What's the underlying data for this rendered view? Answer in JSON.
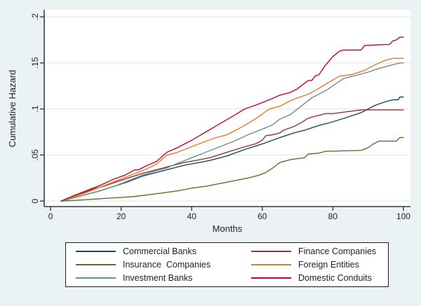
{
  "figure": {
    "background": "#eaf2f3",
    "plot_background": "#ffffff",
    "grid_color": "#ddecef",
    "axis_color": "#3a3a3a",
    "text_color": "#1f1f2a"
  },
  "chart_data": {
    "type": "line",
    "title": "",
    "xlabel": "Months",
    "ylabel": "Cumulative Hazard",
    "xlim": [
      -1.8,
      102
    ],
    "ylim": [
      -0.006,
      0.2077
    ],
    "xticks": [
      0,
      20,
      40,
      60,
      80,
      100
    ],
    "xtick_labels": [
      "0",
      "20",
      "40",
      "60",
      "80",
      "100"
    ],
    "yticks": [
      0,
      0.05,
      0.1,
      0.15,
      0.2
    ],
    "ytick_labels": [
      "0",
      ".05",
      ".1",
      ".15",
      ".2"
    ],
    "grid": true,
    "legend_position": "bottom",
    "series": [
      {
        "name": "Commercial Banks",
        "color": "#1a476f",
        "points": [
          [
            3,
            0
          ],
          [
            6,
            0.003
          ],
          [
            10,
            0.007
          ],
          [
            14,
            0.011
          ],
          [
            18,
            0.016
          ],
          [
            22,
            0.021
          ],
          [
            26,
            0.027
          ],
          [
            30,
            0.031
          ],
          [
            34,
            0.035
          ],
          [
            38,
            0.039
          ],
          [
            41,
            0.041
          ],
          [
            45,
            0.044
          ],
          [
            50,
            0.049
          ],
          [
            55,
            0.056
          ],
          [
            60,
            0.062
          ],
          [
            65,
            0.069
          ],
          [
            69,
            0.074
          ],
          [
            72,
            0.077
          ],
          [
            76,
            0.082
          ],
          [
            80,
            0.086
          ],
          [
            84,
            0.091
          ],
          [
            88,
            0.096
          ],
          [
            90,
            0.1
          ],
          [
            92,
            0.104
          ],
          [
            95,
            0.108
          ],
          [
            97,
            0.11
          ],
          [
            98.5,
            0.11
          ],
          [
            99,
            0.113
          ],
          [
            100,
            0.113
          ]
        ]
      },
      {
        "name": "Finance Companies",
        "color": "#90353b",
        "points": [
          [
            3,
            0
          ],
          [
            5,
            0.003
          ],
          [
            8,
            0.007
          ],
          [
            12,
            0.013
          ],
          [
            15,
            0.016
          ],
          [
            18,
            0.02
          ],
          [
            22,
            0.025
          ],
          [
            26,
            0.03
          ],
          [
            30,
            0.034
          ],
          [
            34,
            0.038
          ],
          [
            38,
            0.042
          ],
          [
            41,
            0.044
          ],
          [
            45,
            0.047
          ],
          [
            50,
            0.053
          ],
          [
            55,
            0.059
          ],
          [
            58,
            0.062
          ],
          [
            60,
            0.066
          ],
          [
            61,
            0.071
          ],
          [
            63,
            0.072
          ],
          [
            65,
            0.074
          ],
          [
            66,
            0.077
          ],
          [
            69,
            0.081
          ],
          [
            71,
            0.085
          ],
          [
            73,
            0.09
          ],
          [
            75,
            0.092
          ],
          [
            78,
            0.095
          ],
          [
            80,
            0.095
          ],
          [
            82,
            0.096
          ],
          [
            84,
            0.097
          ],
          [
            86,
            0.098
          ],
          [
            88,
            0.099
          ],
          [
            100,
            0.099
          ]
        ]
      },
      {
        "name": "Insurance Companies",
        "color": "#55752f",
        "points": [
          [
            3,
            0
          ],
          [
            8,
            0.001
          ],
          [
            12,
            0.002
          ],
          [
            16,
            0.003
          ],
          [
            20,
            0.004
          ],
          [
            24,
            0.005
          ],
          [
            28,
            0.007
          ],
          [
            32,
            0.009
          ],
          [
            36,
            0.011
          ],
          [
            40,
            0.014
          ],
          [
            44,
            0.016
          ],
          [
            48,
            0.019
          ],
          [
            52,
            0.022
          ],
          [
            56,
            0.025
          ],
          [
            59,
            0.028
          ],
          [
            61,
            0.031
          ],
          [
            63,
            0.036
          ],
          [
            65,
            0.042
          ],
          [
            68,
            0.045
          ],
          [
            70,
            0.046
          ],
          [
            72,
            0.047
          ],
          [
            73,
            0.051
          ],
          [
            76,
            0.052
          ],
          [
            78,
            0.054
          ],
          [
            88,
            0.055
          ],
          [
            90,
            0.058
          ],
          [
            91.5,
            0.062
          ],
          [
            93,
            0.065
          ],
          [
            98,
            0.065
          ],
          [
            99,
            0.069
          ],
          [
            100,
            0.069
          ]
        ]
      },
      {
        "name": "Foreign Entities",
        "color": "#e37e23",
        "points": [
          [
            3,
            0
          ],
          [
            6,
            0.004
          ],
          [
            10,
            0.009
          ],
          [
            14,
            0.015
          ],
          [
            18,
            0.021
          ],
          [
            22,
            0.027
          ],
          [
            26,
            0.033
          ],
          [
            30,
            0.04
          ],
          [
            33,
            0.05
          ],
          [
            36,
            0.053
          ],
          [
            40,
            0.059
          ],
          [
            44,
            0.065
          ],
          [
            47,
            0.069
          ],
          [
            50,
            0.072
          ],
          [
            54,
            0.08
          ],
          [
            58,
            0.089
          ],
          [
            62,
            0.1
          ],
          [
            65,
            0.103
          ],
          [
            68,
            0.109
          ],
          [
            70,
            0.112
          ],
          [
            73,
            0.116
          ],
          [
            75,
            0.12
          ],
          [
            78,
            0.127
          ],
          [
            82,
            0.136
          ],
          [
            85,
            0.137
          ],
          [
            89,
            0.142
          ],
          [
            92,
            0.148
          ],
          [
            95,
            0.153
          ],
          [
            97,
            0.155
          ],
          [
            100,
            0.155
          ]
        ]
      },
      {
        "name": "Investment Banks",
        "color": "#6e8e84",
        "points": [
          [
            3,
            0
          ],
          [
            6,
            0.003
          ],
          [
            10,
            0.007
          ],
          [
            14,
            0.011
          ],
          [
            18,
            0.016
          ],
          [
            22,
            0.022
          ],
          [
            26,
            0.028
          ],
          [
            30,
            0.033
          ],
          [
            33,
            0.036
          ],
          [
            36,
            0.041
          ],
          [
            40,
            0.047
          ],
          [
            44,
            0.053
          ],
          [
            48,
            0.059
          ],
          [
            52,
            0.065
          ],
          [
            56,
            0.072
          ],
          [
            60,
            0.078
          ],
          [
            63,
            0.083
          ],
          [
            65,
            0.089
          ],
          [
            68,
            0.094
          ],
          [
            70,
            0.1
          ],
          [
            72,
            0.106
          ],
          [
            74,
            0.112
          ],
          [
            76,
            0.116
          ],
          [
            78,
            0.12
          ],
          [
            80,
            0.125
          ],
          [
            83,
            0.133
          ],
          [
            87,
            0.137
          ],
          [
            90,
            0.14
          ],
          [
            93,
            0.144
          ],
          [
            96,
            0.147
          ],
          [
            99,
            0.15
          ],
          [
            100,
            0.15
          ]
        ]
      },
      {
        "name": "Domestic Conduits",
        "color": "#c10534",
        "points": [
          [
            3,
            0
          ],
          [
            6,
            0.005
          ],
          [
            10,
            0.011
          ],
          [
            14,
            0.017
          ],
          [
            18,
            0.024
          ],
          [
            21,
            0.028
          ],
          [
            24,
            0.034
          ],
          [
            25,
            0.034
          ],
          [
            27,
            0.038
          ],
          [
            30,
            0.043
          ],
          [
            33,
            0.053
          ],
          [
            36,
            0.058
          ],
          [
            40,
            0.066
          ],
          [
            44,
            0.075
          ],
          [
            48,
            0.084
          ],
          [
            52,
            0.093
          ],
          [
            55,
            0.1
          ],
          [
            58,
            0.104
          ],
          [
            62,
            0.11
          ],
          [
            65,
            0.115
          ],
          [
            68,
            0.118
          ],
          [
            70,
            0.122
          ],
          [
            72,
            0.128
          ],
          [
            73,
            0.131
          ],
          [
            74,
            0.131
          ],
          [
            75,
            0.136
          ],
          [
            76,
            0.137
          ],
          [
            78,
            0.148
          ],
          [
            80,
            0.157
          ],
          [
            82,
            0.163
          ],
          [
            83,
            0.164
          ],
          [
            88,
            0.164
          ],
          [
            89,
            0.169
          ],
          [
            95,
            0.17
          ],
          [
            96,
            0.17
          ],
          [
            97,
            0.174
          ],
          [
            98,
            0.175
          ],
          [
            99,
            0.178
          ],
          [
            100,
            0.178
          ]
        ]
      }
    ]
  },
  "legend": {
    "items": [
      {
        "label": "Commercial Banks",
        "color": "#1a476f"
      },
      {
        "label": "Finance Companies",
        "color": "#90353b"
      },
      {
        "label": "Insurance  Companies",
        "color": "#55752f"
      },
      {
        "label": "Foreign Entities",
        "color": "#e37e23"
      },
      {
        "label": "Investment Banks",
        "color": "#6e8e84"
      },
      {
        "label": "Domestic Conduits",
        "color": "#c10534"
      }
    ]
  }
}
